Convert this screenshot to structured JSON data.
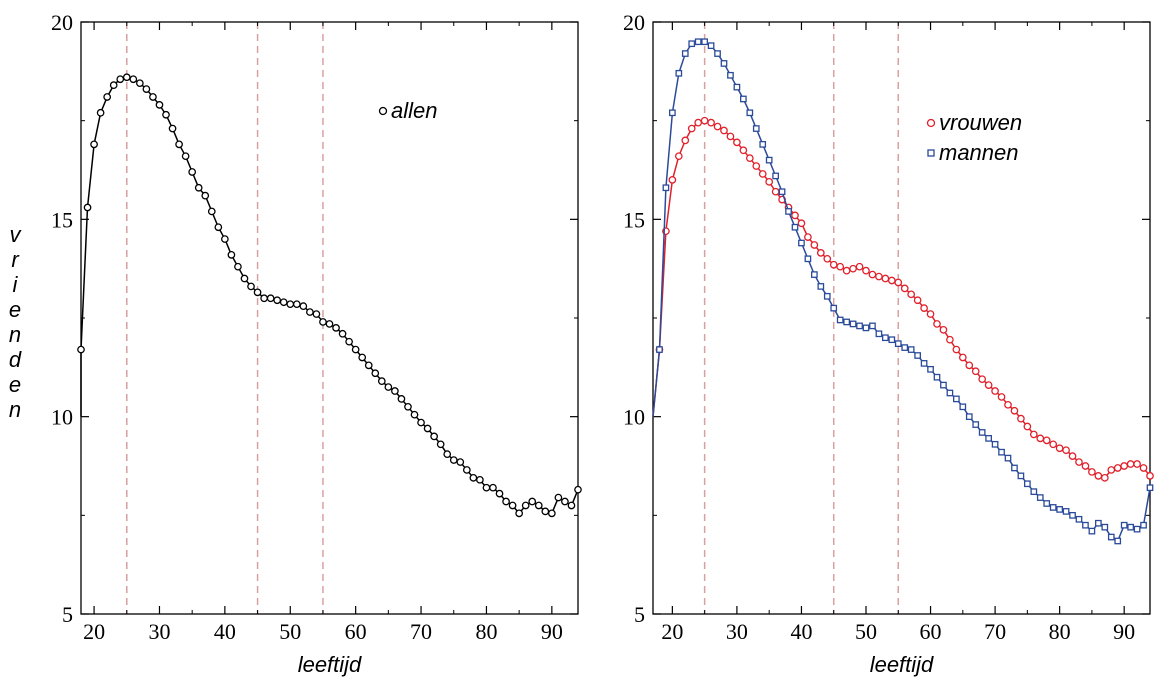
{
  "y_label": "vrienden",
  "chart_data": [
    {
      "type": "line",
      "xlabel": "leeftijd",
      "ylabel": "vrienden",
      "xlim": [
        18,
        94
      ],
      "ylim": [
        5,
        20
      ],
      "xticks": [
        20,
        30,
        40,
        50,
        60,
        70,
        80,
        90
      ],
      "yticks": [
        5,
        10,
        15,
        20
      ],
      "ytick_labels": [
        "5",
        "10",
        "15",
        "20"
      ],
      "vlines": [
        25,
        45,
        55
      ],
      "vline_color": "#d8a0a0",
      "legend_position": "top-right",
      "series": [
        {
          "name": "allen",
          "color": "#000000",
          "marker": "circle",
          "x": [
            18,
            19,
            20,
            21,
            22,
            23,
            24,
            25,
            26,
            27,
            28,
            29,
            30,
            31,
            32,
            33,
            34,
            35,
            36,
            37,
            38,
            39,
            40,
            41,
            42,
            43,
            44,
            45,
            46,
            47,
            48,
            49,
            50,
            51,
            52,
            53,
            54,
            55,
            56,
            57,
            58,
            59,
            60,
            61,
            62,
            63,
            64,
            65,
            66,
            67,
            68,
            69,
            70,
            71,
            72,
            73,
            74,
            75,
            76,
            77,
            78,
            79,
            80,
            81,
            82,
            83,
            84,
            85,
            86,
            87,
            88,
            89,
            90,
            91,
            92,
            93,
            94
          ],
          "y": [
            11.7,
            15.3,
            16.9,
            17.7,
            18.1,
            18.4,
            18.55,
            18.6,
            18.55,
            18.45,
            18.3,
            18.1,
            17.9,
            17.65,
            17.3,
            16.9,
            16.6,
            16.2,
            15.8,
            15.6,
            15.2,
            14.8,
            14.5,
            14.1,
            13.8,
            13.5,
            13.3,
            13.15,
            13.0,
            13.0,
            12.95,
            12.9,
            12.85,
            12.85,
            12.8,
            12.65,
            12.6,
            12.4,
            12.35,
            12.25,
            12.1,
            11.9,
            11.7,
            11.5,
            11.3,
            11.1,
            10.9,
            10.75,
            10.65,
            10.45,
            10.25,
            10.05,
            9.85,
            9.7,
            9.5,
            9.3,
            9.05,
            8.9,
            8.85,
            8.65,
            8.45,
            8.4,
            8.2,
            8.2,
            8.05,
            7.85,
            7.75,
            7.55,
            7.75,
            7.85,
            7.75,
            7.6,
            7.55,
            7.95,
            7.85,
            7.75,
            8.15
          ]
        }
      ]
    },
    {
      "type": "line",
      "xlabel": "leeftijd",
      "ylabel": "",
      "xlim": [
        17,
        94
      ],
      "ylim": [
        5,
        20
      ],
      "xticks": [
        20,
        30,
        40,
        50,
        60,
        70,
        80,
        90
      ],
      "yticks": [
        5,
        10,
        15,
        20
      ],
      "ytick_labels": [
        "5",
        "10",
        "15",
        "20"
      ],
      "vlines": [
        25,
        45,
        55
      ],
      "vline_color": "#d8a0a0",
      "legend_position": "top-right",
      "series": [
        {
          "name": "vrouwen",
          "color": "#e0202a",
          "marker": "circle",
          "x": [
            18,
            19,
            20,
            21,
            22,
            23,
            24,
            25,
            26,
            27,
            28,
            29,
            30,
            31,
            32,
            33,
            34,
            35,
            36,
            37,
            38,
            39,
            40,
            41,
            42,
            43,
            44,
            45,
            46,
            47,
            48,
            49,
            50,
            51,
            52,
            53,
            54,
            55,
            56,
            57,
            58,
            59,
            60,
            61,
            62,
            63,
            64,
            65,
            66,
            67,
            68,
            69,
            70,
            71,
            72,
            73,
            74,
            75,
            76,
            77,
            78,
            79,
            80,
            81,
            82,
            83,
            84,
            85,
            86,
            87,
            88,
            89,
            90,
            91,
            92,
            93,
            94
          ],
          "y": [
            11.7,
            14.7,
            16.0,
            16.6,
            17.0,
            17.3,
            17.45,
            17.5,
            17.45,
            17.35,
            17.25,
            17.1,
            16.95,
            16.75,
            16.55,
            16.35,
            16.15,
            15.95,
            15.7,
            15.5,
            15.3,
            15.1,
            14.9,
            14.55,
            14.35,
            14.15,
            14.0,
            13.85,
            13.8,
            13.7,
            13.75,
            13.8,
            13.7,
            13.6,
            13.55,
            13.5,
            13.45,
            13.4,
            13.25,
            13.1,
            12.95,
            12.75,
            12.6,
            12.35,
            12.2,
            11.95,
            11.7,
            11.5,
            11.3,
            11.15,
            10.95,
            10.8,
            10.65,
            10.5,
            10.3,
            10.15,
            9.95,
            9.75,
            9.55,
            9.45,
            9.4,
            9.3,
            9.2,
            9.15,
            9.0,
            8.85,
            8.75,
            8.6,
            8.5,
            8.45,
            8.65,
            8.7,
            8.75,
            8.8,
            8.8,
            8.7,
            8.5
          ]
        },
        {
          "name": "mannen",
          "color": "#2a4a9a",
          "marker": "square",
          "x": [
            18,
            19,
            20,
            21,
            22,
            23,
            24,
            25,
            26,
            27,
            28,
            29,
            30,
            31,
            32,
            33,
            34,
            35,
            36,
            37,
            38,
            39,
            40,
            41,
            42,
            43,
            44,
            45,
            46,
            47,
            48,
            49,
            50,
            51,
            52,
            53,
            54,
            55,
            56,
            57,
            58,
            59,
            60,
            61,
            62,
            63,
            64,
            65,
            66,
            67,
            68,
            69,
            70,
            71,
            72,
            73,
            74,
            75,
            76,
            77,
            78,
            79,
            80,
            81,
            82,
            83,
            84,
            85,
            86,
            87,
            88,
            89,
            90,
            91,
            92,
            93,
            94
          ],
          "y": [
            11.7,
            15.8,
            17.7,
            18.7,
            19.2,
            19.45,
            19.5,
            19.5,
            19.4,
            19.2,
            18.95,
            18.65,
            18.35,
            18.05,
            17.7,
            17.3,
            16.9,
            16.5,
            16.1,
            15.7,
            15.2,
            14.8,
            14.4,
            14.0,
            13.6,
            13.3,
            13.05,
            12.75,
            12.45,
            12.4,
            12.35,
            12.3,
            12.25,
            12.3,
            12.1,
            12.0,
            11.95,
            11.85,
            11.75,
            11.7,
            11.55,
            11.35,
            11.2,
            11.0,
            10.8,
            10.6,
            10.45,
            10.25,
            10.0,
            9.8,
            9.6,
            9.45,
            9.3,
            9.1,
            8.95,
            8.7,
            8.5,
            8.3,
            8.1,
            7.95,
            7.8,
            7.7,
            7.65,
            7.6,
            7.5,
            7.4,
            7.25,
            7.1,
            7.3,
            7.2,
            6.95,
            6.85,
            7.25,
            7.2,
            7.15,
            7.25,
            8.2
          ]
        }
      ]
    }
  ]
}
